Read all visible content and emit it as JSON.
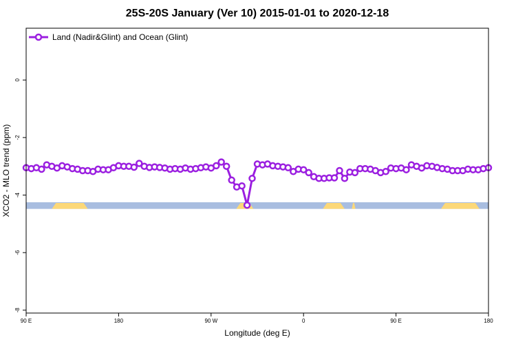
{
  "chart_data": {
    "type": "line",
    "title": "25S-20S January (Ver 10)   2015-01-01 to 2020-12-18",
    "xlabel": "Longitude (deg E)",
    "ylabel": "XCO2 - MLO trend (ppm)",
    "xlim": [
      90,
      270
    ],
    "ylim": [
      -8.1,
      1.8
    ],
    "x_ticks": [
      90,
      126,
      162,
      198,
      234,
      270
    ],
    "x_tick_labels": [
      "90 E",
      "180",
      "90 W",
      "0",
      "90 E",
      "180"
    ],
    "y_ticks": [
      0,
      -2,
      -4,
      -6,
      -8
    ],
    "y_tick_labels": [
      "0",
      "-2",
      "-4",
      "-6",
      "-8"
    ],
    "legend_position": "top-left",
    "series": [
      {
        "name": "Land (Nadir&Glint) and Ocean (Glint)",
        "color": "#9b1fe0",
        "x": [
          90,
          92,
          94,
          96,
          98,
          100,
          102,
          104,
          106,
          108,
          110,
          112,
          114,
          116,
          118,
          120,
          122,
          124,
          126,
          128,
          130,
          132,
          134,
          136,
          138,
          140,
          142,
          144,
          146,
          148,
          150,
          152,
          154,
          156,
          158,
          160,
          162,
          164,
          166,
          168,
          170,
          172,
          174,
          176,
          178,
          180,
          182,
          184,
          186,
          188,
          190,
          192,
          194,
          196,
          198,
          200,
          202,
          204,
          206,
          208,
          210,
          212,
          214,
          216,
          218,
          220,
          222,
          224,
          226,
          228,
          230,
          232,
          234,
          236,
          238,
          240,
          242,
          244,
          246,
          248,
          250,
          252,
          254,
          256,
          258,
          260,
          262,
          264,
          266,
          268,
          270
        ],
        "y": [
          -3.05,
          -3.08,
          -3.05,
          -3.1,
          -2.95,
          -3.0,
          -3.06,
          -2.98,
          -3.02,
          -3.08,
          -3.1,
          -3.15,
          -3.15,
          -3.18,
          -3.1,
          -3.12,
          -3.12,
          -3.05,
          -2.98,
          -3.0,
          -3.0,
          -3.03,
          -2.9,
          -3.0,
          -3.04,
          -3.02,
          -3.04,
          -3.06,
          -3.1,
          -3.08,
          -3.1,
          -3.06,
          -3.1,
          -3.08,
          -3.05,
          -3.02,
          -3.06,
          -2.98,
          -2.85,
          -3.0,
          -3.48,
          -3.72,
          -3.68,
          -4.35,
          -3.42,
          -2.92,
          -2.95,
          -2.92,
          -2.98,
          -3.0,
          -3.02,
          -3.05,
          -3.18,
          -3.1,
          -3.12,
          -3.22,
          -3.36,
          -3.42,
          -3.42,
          -3.4,
          -3.4,
          -3.15,
          -3.42,
          -3.2,
          -3.22,
          -3.08,
          -3.08,
          -3.1,
          -3.15,
          -3.22,
          -3.18,
          -3.06,
          -3.08,
          -3.06,
          -3.12,
          -2.95,
          -3.0,
          -3.06,
          -2.98,
          -3.0,
          -3.04,
          -3.08,
          -3.1,
          -3.15,
          -3.15,
          -3.15,
          -3.1,
          -3.12,
          -3.12,
          -3.08,
          -3.05
        ]
      }
    ],
    "surface_band": {
      "y_range": [
        -4.25,
        -4.48
      ],
      "ocean_color": "#a8bde0",
      "land_color": "#fcd878",
      "land_segments": [
        [
          100,
          114
        ],
        [
          171.8,
          178.5
        ],
        [
          205.5,
          214
        ],
        [
          216.8,
          218.2
        ],
        [
          251.5,
          266.5
        ]
      ]
    }
  }
}
